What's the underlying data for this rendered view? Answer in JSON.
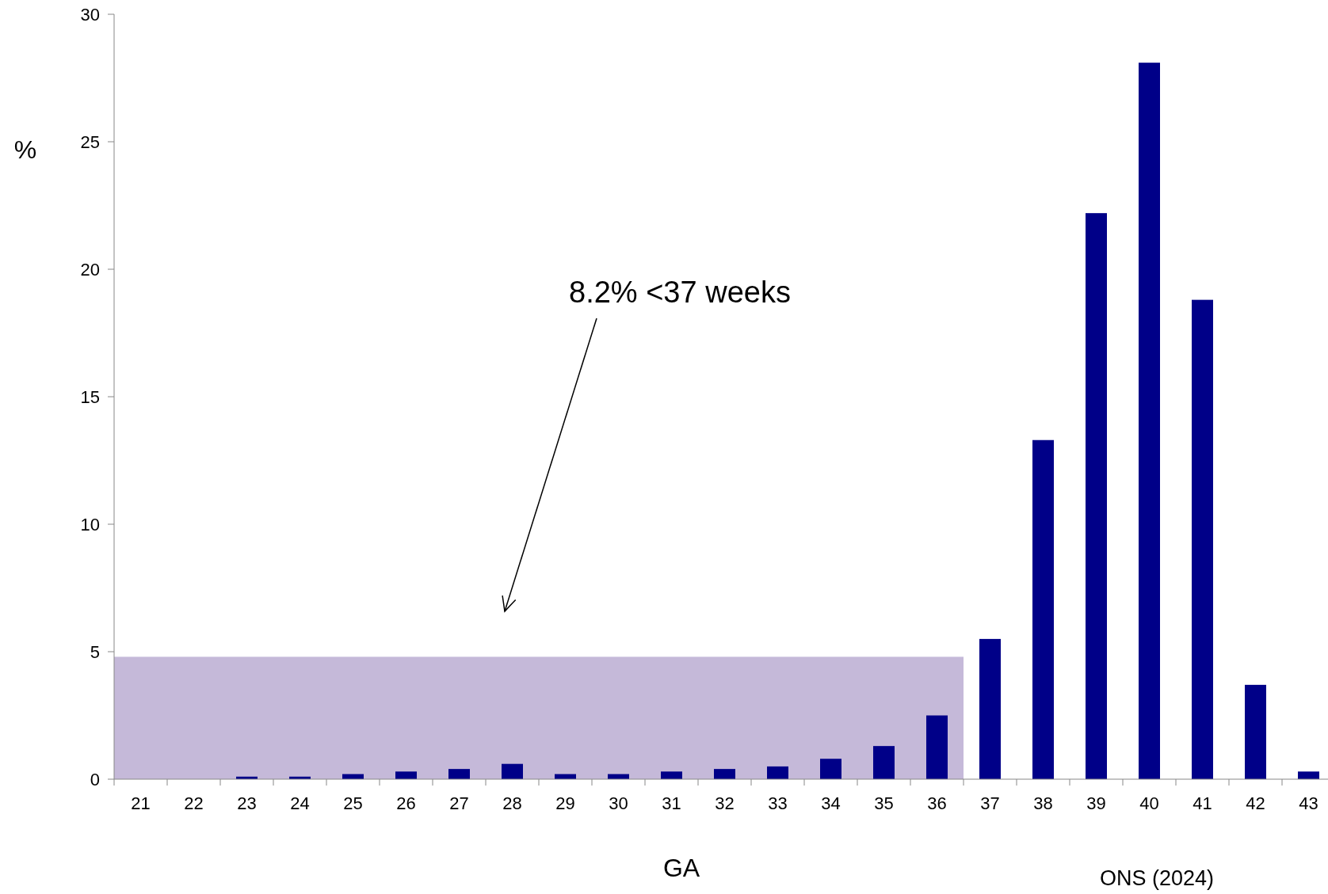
{
  "chart_data": {
    "type": "bar",
    "ylabel": "%",
    "xlabel": "GA",
    "categories": [
      "21",
      "22",
      "23",
      "24",
      "25",
      "26",
      "27",
      "28",
      "29",
      "30",
      "31",
      "32",
      "33",
      "34",
      "35",
      "36",
      "37",
      "38",
      "39",
      "40",
      "41",
      "42",
      "43"
    ],
    "values": [
      0,
      0,
      0.1,
      0.1,
      0.2,
      0.3,
      0.4,
      0.6,
      0.2,
      0.2,
      0.3,
      0.4,
      0.5,
      0.8,
      1.3,
      2.5,
      5.5,
      13.3,
      22.2,
      28.1,
      18.8,
      3.7,
      0.3
    ],
    "color": "#000088",
    "ylim": [
      0,
      30
    ],
    "yticks": [
      0,
      5,
      10,
      15,
      20,
      25,
      30
    ],
    "grid": false,
    "bands": [
      {
        "axis": "y",
        "from": 0,
        "to": 4.8,
        "color": "#c5b9d9"
      }
    ],
    "annotations": [
      "8.2% <37 weeks",
      "ONS (2024)"
    ]
  }
}
